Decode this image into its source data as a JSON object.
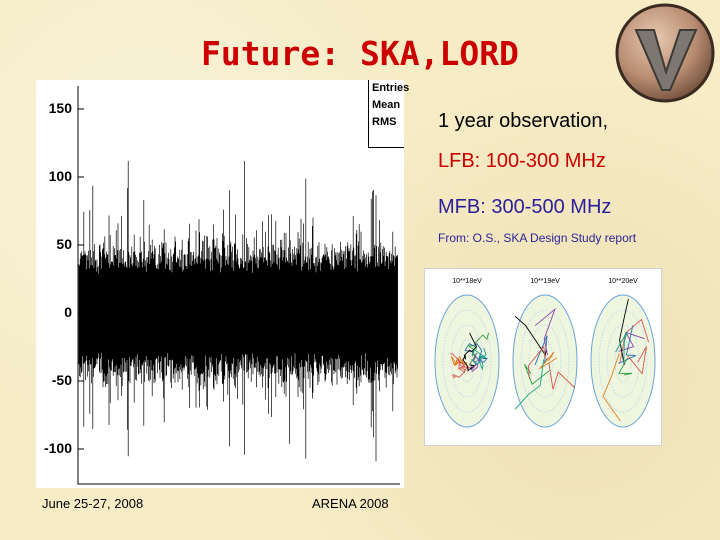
{
  "slide": {
    "title": "Future: SKA,LORD",
    "observation": "1 year observation,",
    "lfb": "LFB: 100-300 MHz",
    "mfb": "MFB: 300-500 MHz",
    "source": "From: O.S., SKA Design Study report"
  },
  "plot": {
    "stats_labels": [
      "Entries",
      "Mean",
      "RMS"
    ],
    "y_ticks": [
      "150",
      "100",
      "50",
      "0",
      "-50",
      "-100"
    ]
  },
  "sim_figure": {
    "panel_titles": [
      "10**18eV",
      "10**19eV",
      "10**20eV"
    ]
  },
  "footer": {
    "date": "June 25-27, 2008",
    "conference": "ARENA 2008"
  },
  "colors": {
    "title": "#cc0000",
    "lfb": "#cc0000",
    "mfb": "#2b1f9b",
    "source": "#2b1f9b",
    "background": "#f6ecc6"
  }
}
